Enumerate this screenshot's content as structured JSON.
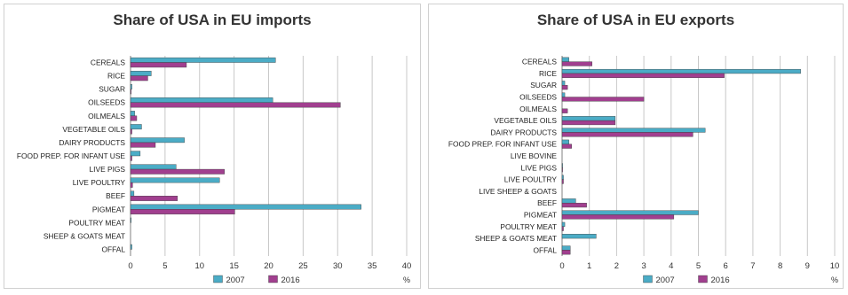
{
  "colors": {
    "series_2007": "#4bacc6",
    "series_2016": "#a13f8f",
    "grid": "#c8c8c8",
    "axis": "#808080"
  },
  "chart_data": [
    {
      "type": "bar",
      "orientation": "horizontal",
      "title": "Share of USA in EU imports",
      "xlabel": "%",
      "ylabel": "",
      "xlim": [
        0,
        40
      ],
      "xticks": [
        0,
        5,
        10,
        15,
        20,
        25,
        30,
        35,
        40
      ],
      "grid": "vertical",
      "legend": "bottom",
      "categories": [
        "CEREALS",
        "RICE",
        "SUGAR",
        "OILSEEDS",
        "OILMEALS",
        "VEGETABLE OILS",
        "DAIRY PRODUCTS",
        "FOOD PREP. FOR INFANT USE",
        "LIVE PIGS",
        "LIVE POULTRY",
        "BEEF",
        "PIGMEAT",
        "POULTRY MEAT",
        "SHEEP & GOATS MEAT",
        "OFFAL"
      ],
      "series": [
        {
          "name": "2007",
          "values": [
            21.0,
            3.0,
            0.2,
            20.6,
            0.6,
            1.6,
            7.8,
            1.4,
            6.6,
            12.9,
            0.5,
            33.4,
            0.1,
            0.0,
            0.2
          ]
        },
        {
          "name": "2016",
          "values": [
            8.1,
            2.5,
            0.1,
            30.4,
            0.9,
            0.2,
            3.6,
            0.2,
            13.6,
            0.3,
            6.8,
            15.1,
            0.0,
            0.0,
            0.0
          ]
        }
      ]
    },
    {
      "type": "bar",
      "orientation": "horizontal",
      "title": "Share of USA in EU exports",
      "xlabel": "%",
      "ylabel": "",
      "xlim": [
        0,
        10
      ],
      "xticks": [
        0,
        1,
        2,
        3,
        4,
        5,
        6,
        7,
        8,
        9,
        10
      ],
      "grid": "vertical",
      "legend": "bottom",
      "categories": [
        "CEREALS",
        "RICE",
        "SUGAR",
        "OILSEEDS",
        "OILMEALS",
        "VEGETABLE OILS",
        "DAIRY PRODUCTS",
        "FOOD PREP. FOR INFANT USE",
        "LIVE BOVINE",
        "LIVE PIGS",
        "LIVE POULTRY",
        "LIVE SHEEP & GOATS",
        "BEEF",
        "PIGMEAT",
        "POULTRY MEAT",
        "SHEEP & GOATS MEAT",
        "OFFAL"
      ],
      "series": [
        {
          "name": "2007",
          "values": [
            0.25,
            8.75,
            0.1,
            0.1,
            0.0,
            1.95,
            5.25,
            0.25,
            0.0,
            0.02,
            0.05,
            0.0,
            0.5,
            5.0,
            0.1,
            1.25,
            0.3
          ]
        },
        {
          "name": "2016",
          "values": [
            1.1,
            5.95,
            0.2,
            3.0,
            0.2,
            1.95,
            4.8,
            0.35,
            0.0,
            0.02,
            0.05,
            0.0,
            0.9,
            4.1,
            0.05,
            0.0,
            0.3
          ]
        }
      ]
    }
  ]
}
